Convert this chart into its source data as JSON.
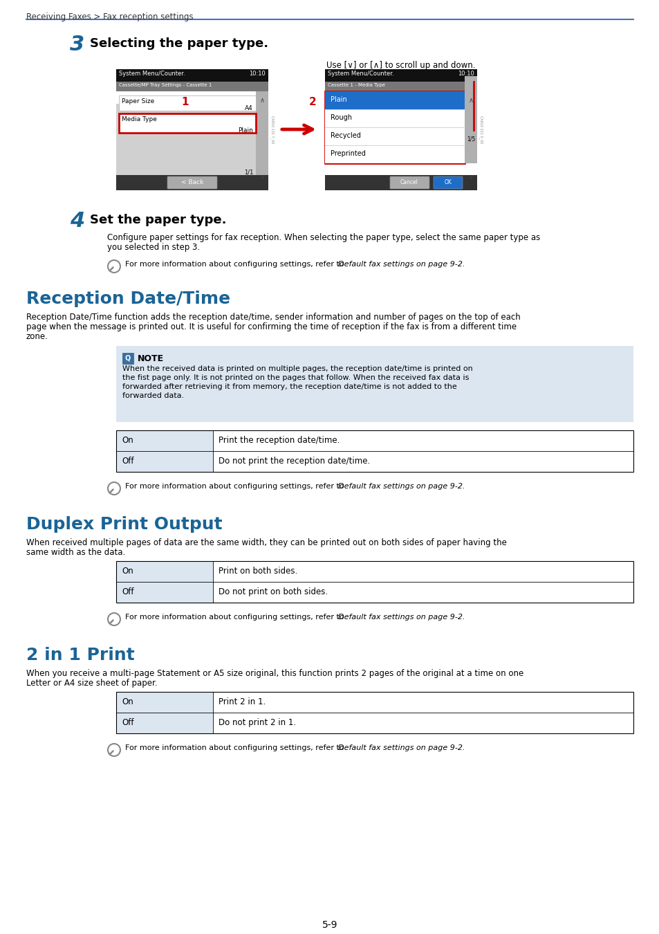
{
  "page_bg": "#ffffff",
  "header_text": "Receiving Faxes > Fax reception settings",
  "header_line_color": "#4472c4",
  "blue_heading_color": "#1a6496",
  "step3_num": "3",
  "step3_title": "Selecting the paper type.",
  "step4_num": "4",
  "step4_title": "Set the paper type.",
  "step4_body1": "Configure paper settings for fax reception. When selecting the paper type, select the same paper type as",
  "step4_body2": "you selected in step 3.",
  "note_ref_text": "For more information about configuring settings, refer to ",
  "note_ref_italic": "Default fax settings on page 9-2.",
  "scroll_hint": "Use [∨] or [∧] to scroll up and down.",
  "screen1_title": "System Menu/Counter.",
  "screen1_sub": "Cassette/MP Tray Settings - Cassette 1",
  "screen1_time": "10:10",
  "screen1_row1_label": "Paper Size",
  "screen1_row1_val": "A4",
  "screen1_row2_label": "Media Type",
  "screen1_row2_val": "Plain",
  "screen1_page": "1/1",
  "screen1_back": "< Back",
  "screen1_num": "1",
  "screen2_title": "System Menu/Counter.",
  "screen2_sub": "Cassette 1 - Media Type",
  "screen2_time": "10:10",
  "screen2_items": [
    "Plain",
    "Rough",
    "Recycled",
    "Preprinted"
  ],
  "screen2_page": "1/5",
  "screen2_num": "2",
  "section1_title": "Reception Date/Time",
  "section1_body1": "Reception Date/Time function adds the reception date/time, sender information and number of pages on the top of each",
  "section1_body2": "page when the message is printed out. It is useful for confirming the time of reception if the fax is from a different time",
  "section1_body3": "zone.",
  "note_bg": "#dce6f1",
  "note_title": "NOTE",
  "note_body1": "When the received data is printed on multiple pages, the reception date/time is printed on",
  "note_body2": "the fist page only. It is not printed on the pages that follow. When the received fax data is",
  "note_body3": "forwarded after retrieving it from memory, the reception date/time is not added to the",
  "note_body4": "forwarded data.",
  "table1_rows": [
    [
      "On",
      "Print the reception date/time."
    ],
    [
      "Off",
      "Do not print the reception date/time."
    ]
  ],
  "section2_title": "Duplex Print Output",
  "section2_body1": "When received multiple pages of data are the same width, they can be printed out on both sides of paper having the",
  "section2_body2": "same width as the data.",
  "table2_rows": [
    [
      "On",
      "Print on both sides."
    ],
    [
      "Off",
      "Do not print on both sides."
    ]
  ],
  "section3_title": "2 in 1 Print",
  "section3_body1": "When you receive a multi-page Statement or A5 size original, this function prints 2 pages of the original at a time on one",
  "section3_body2": "Letter or A4 size sheet of paper.",
  "table3_rows": [
    [
      "On",
      "Print 2 in 1."
    ],
    [
      "Off",
      "Do not print 2 in 1."
    ]
  ],
  "page_num": "5-9",
  "table_border": "#000000",
  "table_col1_bg": "#dce6f1",
  "table_col2_bg": "#ffffff",
  "screen_black": "#1a1a1a",
  "screen_gray_body": "#c8c8c8",
  "screen_gray_sub": "#888888",
  "screen_blue_highlight": "#1e6dc8",
  "screen_red_border": "#cc0000",
  "arrow_red": "#cc0000",
  "scroll_arrow_color": "#555555"
}
